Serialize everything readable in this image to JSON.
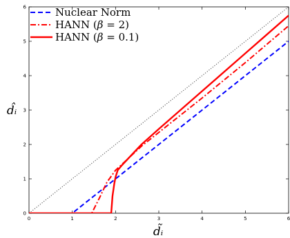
{
  "chart_data": {
    "type": "line",
    "xlabel": "d̃ᵢ",
    "ylabel": "d̂ᵢ",
    "xlim": [
      0,
      6
    ],
    "ylim": [
      0,
      6
    ],
    "grid": false,
    "legend_position": "top-left",
    "x_ticks": [
      "0",
      "1",
      "2",
      "3",
      "4",
      "5",
      "6"
    ],
    "y_ticks": [
      "0",
      "1",
      "2",
      "3",
      "4",
      "5",
      "6"
    ],
    "reference_line": {
      "style": "dotted",
      "color": "#555555",
      "points": [
        [
          0,
          0
        ],
        [
          6,
          6
        ]
      ]
    },
    "series": [
      {
        "name": "Nuclear Norm",
        "color": "#0000ff",
        "style": "dashed",
        "points": [
          [
            0,
            0
          ],
          [
            1,
            0
          ],
          [
            6,
            5
          ]
        ]
      },
      {
        "name": "HANN (β = 2)",
        "color": "#ff0000",
        "style": "dashdot",
        "points": [
          [
            0,
            0
          ],
          [
            1.45,
            0
          ],
          [
            1.55,
            0.25
          ],
          [
            1.65,
            0.5
          ],
          [
            1.8,
            0.9
          ],
          [
            2.0,
            1.25
          ],
          [
            2.3,
            1.6
          ],
          [
            2.6,
            1.95
          ],
          [
            3.0,
            2.35
          ],
          [
            3.5,
            2.85
          ],
          [
            4.0,
            3.35
          ],
          [
            5.0,
            4.38
          ],
          [
            6.0,
            5.45
          ]
        ]
      },
      {
        "name": "HANN (β = 0.1)",
        "color": "#ff0000",
        "style": "solid",
        "points": [
          [
            0,
            0
          ],
          [
            1.9,
            0
          ],
          [
            1.93,
            0.5
          ],
          [
            1.97,
            0.85
          ],
          [
            2.0,
            1.05
          ],
          [
            2.05,
            1.25
          ],
          [
            2.15,
            1.4
          ],
          [
            2.3,
            1.6
          ],
          [
            2.6,
            2.0
          ],
          [
            3.0,
            2.45
          ],
          [
            3.5,
            3.0
          ],
          [
            4.0,
            3.55
          ],
          [
            5.0,
            4.65
          ],
          [
            6.0,
            5.75
          ]
        ]
      }
    ],
    "legend": [
      {
        "prefix": "Nuclear Norm",
        "math": ""
      },
      {
        "prefix": "HANN (",
        "math": "β",
        "suffix": " = 2)"
      },
      {
        "prefix": "HANN (",
        "math": "β",
        "suffix": " = 0.1)"
      }
    ]
  }
}
